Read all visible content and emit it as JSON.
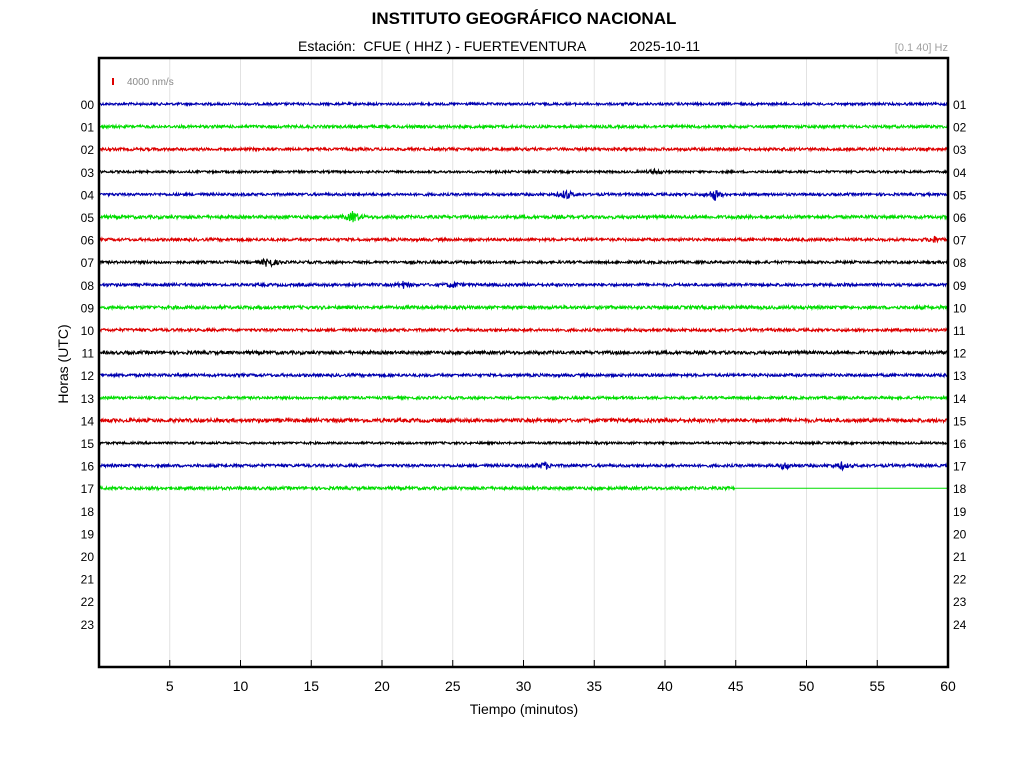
{
  "header": {
    "title": "INSTITUTO GEOGRÁFICO NACIONAL",
    "station_prefix": "Estación:",
    "station": "CFUE ( HHZ ) - FUERTEVENTURA",
    "date": "2025-10-11",
    "filter": "[0.1 40] Hz"
  },
  "chart_data": {
    "type": "line",
    "title": "INSTITUTO GEOGRÁFICO NACIONAL",
    "subtitle": "Estación:  CFUE ( HHZ ) - FUERTEVENTURA   2025-10-11",
    "xlabel": "Tiempo (minutos)",
    "ylabel": "Horas (UTC)",
    "xlim": [
      0,
      60
    ],
    "x_ticks": [
      "5",
      "10",
      "15",
      "20",
      "25",
      "30",
      "35",
      "40",
      "45",
      "50",
      "55",
      "60"
    ],
    "y_ticks_left": [
      "00",
      "01",
      "02",
      "03",
      "04",
      "05",
      "06",
      "07",
      "08",
      "09",
      "10",
      "11",
      "12",
      "13",
      "14",
      "15",
      "16",
      "17",
      "18",
      "19",
      "20",
      "21",
      "22",
      "23"
    ],
    "y_ticks_right": [
      "01",
      "02",
      "03",
      "04",
      "05",
      "06",
      "07",
      "08",
      "09",
      "10",
      "11",
      "12",
      "13",
      "14",
      "15",
      "16",
      "17",
      "18",
      "19",
      "20",
      "21",
      "22",
      "23",
      "24"
    ],
    "scale_label": "4000 nm/s",
    "grid": "vertical",
    "trace_colors": [
      "#0000b0",
      "#00dd00",
      "#dd0000",
      "#000000"
    ],
    "traces": [
      {
        "hour": "00",
        "end_minute": 60,
        "noise": 1.2,
        "events": []
      },
      {
        "hour": "01",
        "end_minute": 60,
        "noise": 1.4,
        "events": []
      },
      {
        "hour": "02",
        "end_minute": 60,
        "noise": 1.4,
        "events": []
      },
      {
        "hour": "03",
        "end_minute": 60,
        "noise": 1.1,
        "events": [
          {
            "minute": 39.3,
            "amp": 2.5
          }
        ]
      },
      {
        "hour": "04",
        "end_minute": 60,
        "noise": 1.3,
        "events": [
          {
            "minute": 33.0,
            "amp": 5
          },
          {
            "minute": 43.5,
            "amp": 6
          }
        ]
      },
      {
        "hour": "05",
        "end_minute": 60,
        "noise": 1.6,
        "events": [
          {
            "minute": 18.0,
            "amp": 6
          }
        ]
      },
      {
        "hour": "06",
        "end_minute": 60,
        "noise": 1.4,
        "events": [
          {
            "minute": 59.0,
            "amp": 3
          }
        ]
      },
      {
        "hour": "07",
        "end_minute": 60,
        "noise": 1.3,
        "events": [
          {
            "minute": 12.0,
            "amp": 6
          }
        ]
      },
      {
        "hour": "08",
        "end_minute": 60,
        "noise": 1.4,
        "events": [
          {
            "minute": 21.5,
            "amp": 3
          },
          {
            "minute": 25.0,
            "amp": 3
          }
        ]
      },
      {
        "hour": "09",
        "end_minute": 60,
        "noise": 1.6,
        "events": []
      },
      {
        "hour": "10",
        "end_minute": 60,
        "noise": 1.4,
        "events": []
      },
      {
        "hour": "11",
        "end_minute": 60,
        "noise": 1.6,
        "events": []
      },
      {
        "hour": "12",
        "end_minute": 60,
        "noise": 1.4,
        "events": []
      },
      {
        "hour": "13",
        "end_minute": 60,
        "noise": 1.3,
        "events": []
      },
      {
        "hour": "14",
        "end_minute": 60,
        "noise": 1.8,
        "events": []
      },
      {
        "hour": "15",
        "end_minute": 60,
        "noise": 1.1,
        "events": []
      },
      {
        "hour": "16",
        "end_minute": 60,
        "noise": 1.4,
        "events": [
          {
            "minute": 31.5,
            "amp": 3.5
          },
          {
            "minute": 48.5,
            "amp": 3.5
          },
          {
            "minute": 52.5,
            "amp": 3.5
          }
        ]
      },
      {
        "hour": "17",
        "end_minute": 45,
        "noise": 1.5,
        "events": []
      }
    ]
  }
}
